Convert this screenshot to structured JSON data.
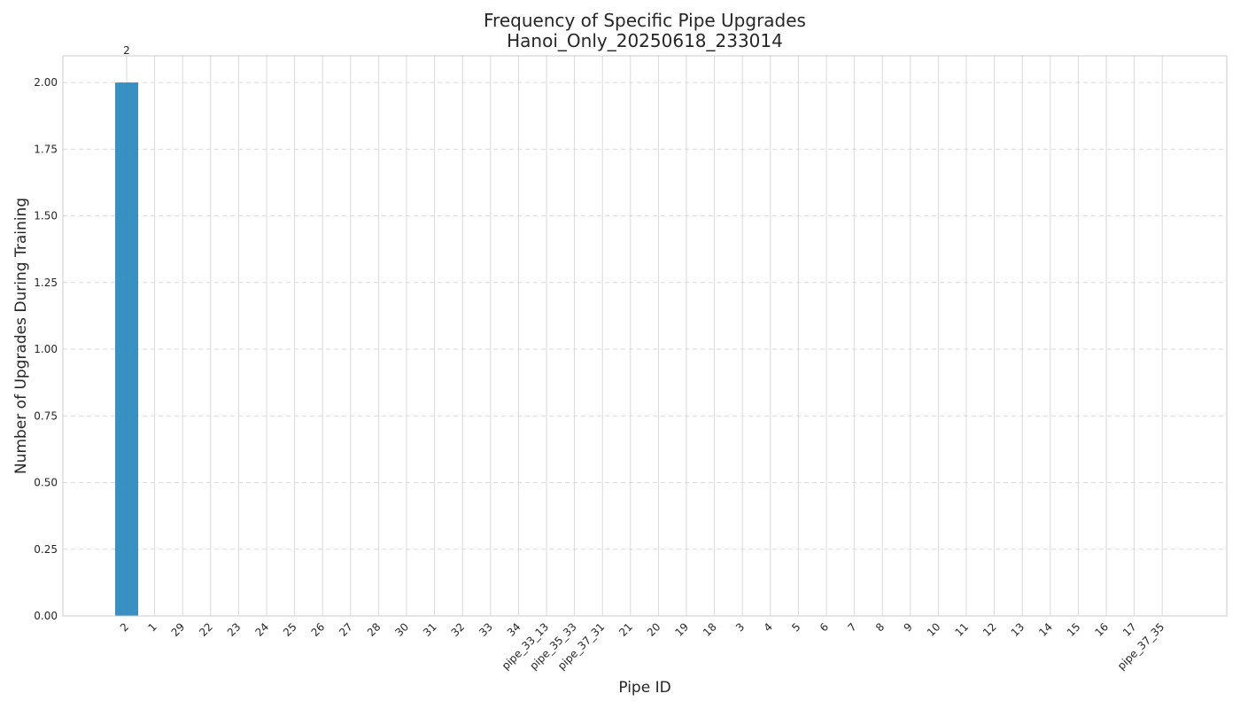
{
  "chart_data": {
    "type": "bar",
    "title": "Frequency of Specific Pipe Upgrades",
    "subtitle": "Hanoi_Only_20250618_233014",
    "xlabel": "Pipe ID",
    "ylabel": "Number of Upgrades During Training",
    "ylim": [
      0,
      2.1
    ],
    "yticks": [
      "0.00",
      "0.25",
      "0.50",
      "0.75",
      "1.00",
      "1.25",
      "1.50",
      "1.75",
      "2.00"
    ],
    "grid": true,
    "categories": [
      "2",
      "1",
      "29",
      "22",
      "23",
      "24",
      "25",
      "26",
      "27",
      "28",
      "30",
      "31",
      "32",
      "33",
      "34",
      "pipe_33_13",
      "pipe_35_33",
      "pipe_37_31",
      "21",
      "20",
      "19",
      "18",
      "3",
      "4",
      "5",
      "6",
      "7",
      "8",
      "9",
      "10",
      "11",
      "12",
      "13",
      "14",
      "15",
      "16",
      "17",
      "pipe_37_35"
    ],
    "values": [
      2,
      0,
      0,
      0,
      0,
      0,
      0,
      0,
      0,
      0,
      0,
      0,
      0,
      0,
      0,
      0,
      0,
      0,
      0,
      0,
      0,
      0,
      0,
      0,
      0,
      0,
      0,
      0,
      0,
      0,
      0,
      0,
      0,
      0,
      0,
      0,
      0,
      0
    ],
    "data_labels": [
      "2"
    ],
    "bar_color": "#2e8bc0"
  }
}
